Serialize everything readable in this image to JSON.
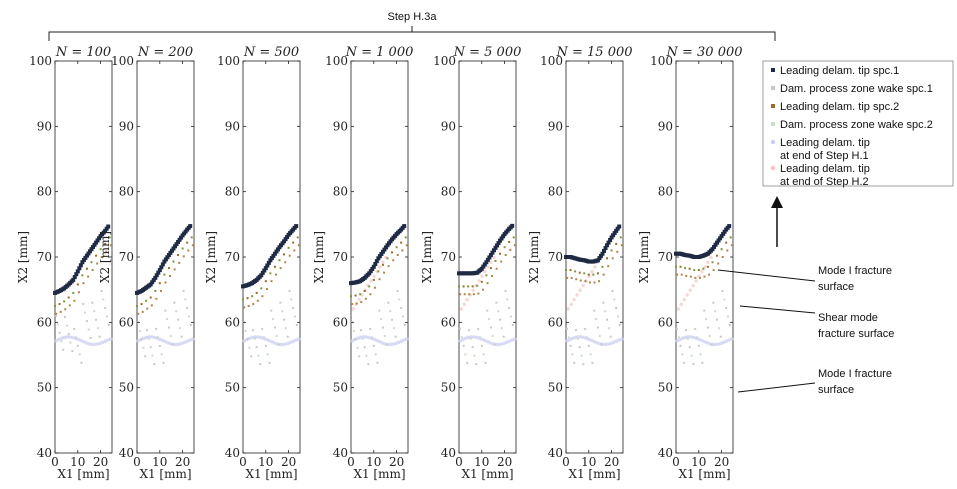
{
  "header": {
    "label": "Step H.3a"
  },
  "legend": [
    {
      "lines": [
        "Leading delam. tip spc.1"
      ],
      "color": "#1f2a44",
      "marker": "square"
    },
    {
      "lines": [
        "Dam. process zone wake spc.1"
      ],
      "color": "#c8c8c8",
      "marker": "square"
    },
    {
      "lines": [
        "Leading delam. tip spc.2"
      ],
      "color": "#9a6a2a",
      "marker": "square"
    },
    {
      "lines": [
        "Dam. process zone wake spc.2"
      ],
      "color": "#c8dcc8",
      "marker": "square"
    },
    {
      "lines": [
        "Leading delam. tip",
        "at end of Step H.1"
      ],
      "color": "#c9cdf0",
      "marker": "circle"
    },
    {
      "lines": [
        "Leading delam. tip",
        "at end of Step H.2"
      ],
      "color": "#f2c4c4",
      "marker": "circle"
    }
  ],
  "annotations": [
    {
      "lines": [
        "Mode I fracture",
        "surface"
      ]
    },
    {
      "lines": [
        "Shear mode",
        "fracture surface"
      ]
    },
    {
      "lines": [
        "Mode I fracture",
        "surface"
      ]
    }
  ],
  "chart_data": {
    "type": "scatter",
    "xlabel": "X1 [mm]",
    "ylabel": "X2 [mm]",
    "xlim": [
      0,
      25
    ],
    "ylim": [
      40,
      100
    ],
    "xticks": [
      "0",
      "10",
      "20"
    ],
    "yticks": [
      "40",
      "50",
      "60",
      "70",
      "80",
      "90",
      "100"
    ],
    "panels": [
      {
        "title": "N = 100",
        "front": [
          [
            0,
            64.5
          ],
          [
            2,
            64.8
          ],
          [
            4,
            65.2
          ],
          [
            6,
            65.8
          ],
          [
            8,
            66.5
          ],
          [
            10,
            67.8
          ],
          [
            12,
            69.2
          ],
          [
            14,
            70.2
          ],
          [
            16,
            71.2
          ],
          [
            18,
            72.2
          ],
          [
            20,
            73.2
          ],
          [
            22,
            74
          ],
          [
            24,
            75
          ]
        ],
        "wake": [
          [
            2,
            61
          ],
          [
            6,
            60
          ],
          [
            10,
            59
          ],
          [
            14,
            62
          ],
          [
            18,
            63
          ],
          [
            22,
            64
          ]
        ]
      },
      {
        "title": "N = 200",
        "front": [
          [
            0,
            64.5
          ],
          [
            2,
            64.8
          ],
          [
            4,
            65.3
          ],
          [
            6,
            65.8
          ],
          [
            8,
            66.8
          ],
          [
            10,
            68
          ],
          [
            12,
            69.3
          ],
          [
            14,
            70.3
          ],
          [
            16,
            71.3
          ],
          [
            18,
            72.3
          ],
          [
            20,
            73.3
          ],
          [
            22,
            74.2
          ],
          [
            24,
            75
          ]
        ],
        "wake": [
          [
            2,
            60
          ],
          [
            6,
            58
          ],
          [
            10,
            59
          ],
          [
            14,
            61
          ],
          [
            18,
            63
          ],
          [
            22,
            64
          ]
        ]
      },
      {
        "title": "N = 500",
        "front": [
          [
            0,
            65.5
          ],
          [
            2,
            65.7
          ],
          [
            4,
            66
          ],
          [
            6,
            66.5
          ],
          [
            8,
            67.2
          ],
          [
            10,
            68.3
          ],
          [
            12,
            69.5
          ],
          [
            14,
            70.5
          ],
          [
            16,
            71.5
          ],
          [
            18,
            72.4
          ],
          [
            20,
            73.4
          ],
          [
            22,
            74.2
          ],
          [
            24,
            75
          ]
        ],
        "wake": [
          [
            2,
            60
          ],
          [
            6,
            58
          ],
          [
            10,
            59
          ],
          [
            14,
            61
          ],
          [
            18,
            63
          ],
          [
            22,
            64
          ]
        ]
      },
      {
        "title": "N = 1 000",
        "front": [
          [
            0,
            66
          ],
          [
            2,
            66.1
          ],
          [
            4,
            66.3
          ],
          [
            6,
            66.8
          ],
          [
            8,
            67.5
          ],
          [
            10,
            68.5
          ],
          [
            12,
            69.8
          ],
          [
            14,
            70.8
          ],
          [
            16,
            71.8
          ],
          [
            18,
            72.7
          ],
          [
            20,
            73.5
          ],
          [
            22,
            74.2
          ],
          [
            24,
            75
          ]
        ],
        "wake": [
          [
            2,
            60
          ],
          [
            6,
            58
          ],
          [
            10,
            59
          ],
          [
            14,
            61
          ],
          [
            18,
            63
          ],
          [
            22,
            64
          ]
        ]
      },
      {
        "title": "N = 5 000",
        "front": [
          [
            0,
            67.5
          ],
          [
            2,
            67.5
          ],
          [
            4,
            67.5
          ],
          [
            6,
            67.5
          ],
          [
            8,
            67.6
          ],
          [
            10,
            68.2
          ],
          [
            12,
            69.2
          ],
          [
            14,
            70.3
          ],
          [
            16,
            71.4
          ],
          [
            18,
            72.5
          ],
          [
            20,
            73.5
          ],
          [
            22,
            74.3
          ],
          [
            24,
            75
          ]
        ],
        "wake": [
          [
            2,
            59
          ],
          [
            6,
            58
          ],
          [
            10,
            59
          ],
          [
            14,
            61
          ],
          [
            18,
            63
          ],
          [
            22,
            64
          ]
        ]
      },
      {
        "title": "N = 15 000",
        "front": [
          [
            0,
            70
          ],
          [
            2,
            70
          ],
          [
            4,
            69.8
          ],
          [
            6,
            69.6
          ],
          [
            8,
            69.5
          ],
          [
            10,
            69.3
          ],
          [
            12,
            69.3
          ],
          [
            14,
            69.5
          ],
          [
            16,
            70.5
          ],
          [
            18,
            71.8
          ],
          [
            20,
            73
          ],
          [
            22,
            74
          ],
          [
            24,
            75
          ]
        ],
        "wake": [
          [
            2,
            59
          ],
          [
            6,
            58
          ],
          [
            10,
            59
          ],
          [
            14,
            61
          ],
          [
            18,
            63
          ],
          [
            22,
            64
          ]
        ]
      },
      {
        "title": "N = 30 000",
        "front": [
          [
            0,
            70.5
          ],
          [
            2,
            70.5
          ],
          [
            4,
            70.3
          ],
          [
            6,
            70.2
          ],
          [
            8,
            70
          ],
          [
            10,
            70
          ],
          [
            12,
            70.2
          ],
          [
            14,
            70.5
          ],
          [
            16,
            71.2
          ],
          [
            18,
            72.2
          ],
          [
            20,
            73.2
          ],
          [
            22,
            74.2
          ],
          [
            24,
            75
          ]
        ],
        "wake": [
          [
            2,
            59
          ],
          [
            6,
            58
          ],
          [
            10,
            59
          ],
          [
            14,
            61
          ],
          [
            18,
            63
          ],
          [
            22,
            64
          ]
        ]
      }
    ]
  }
}
